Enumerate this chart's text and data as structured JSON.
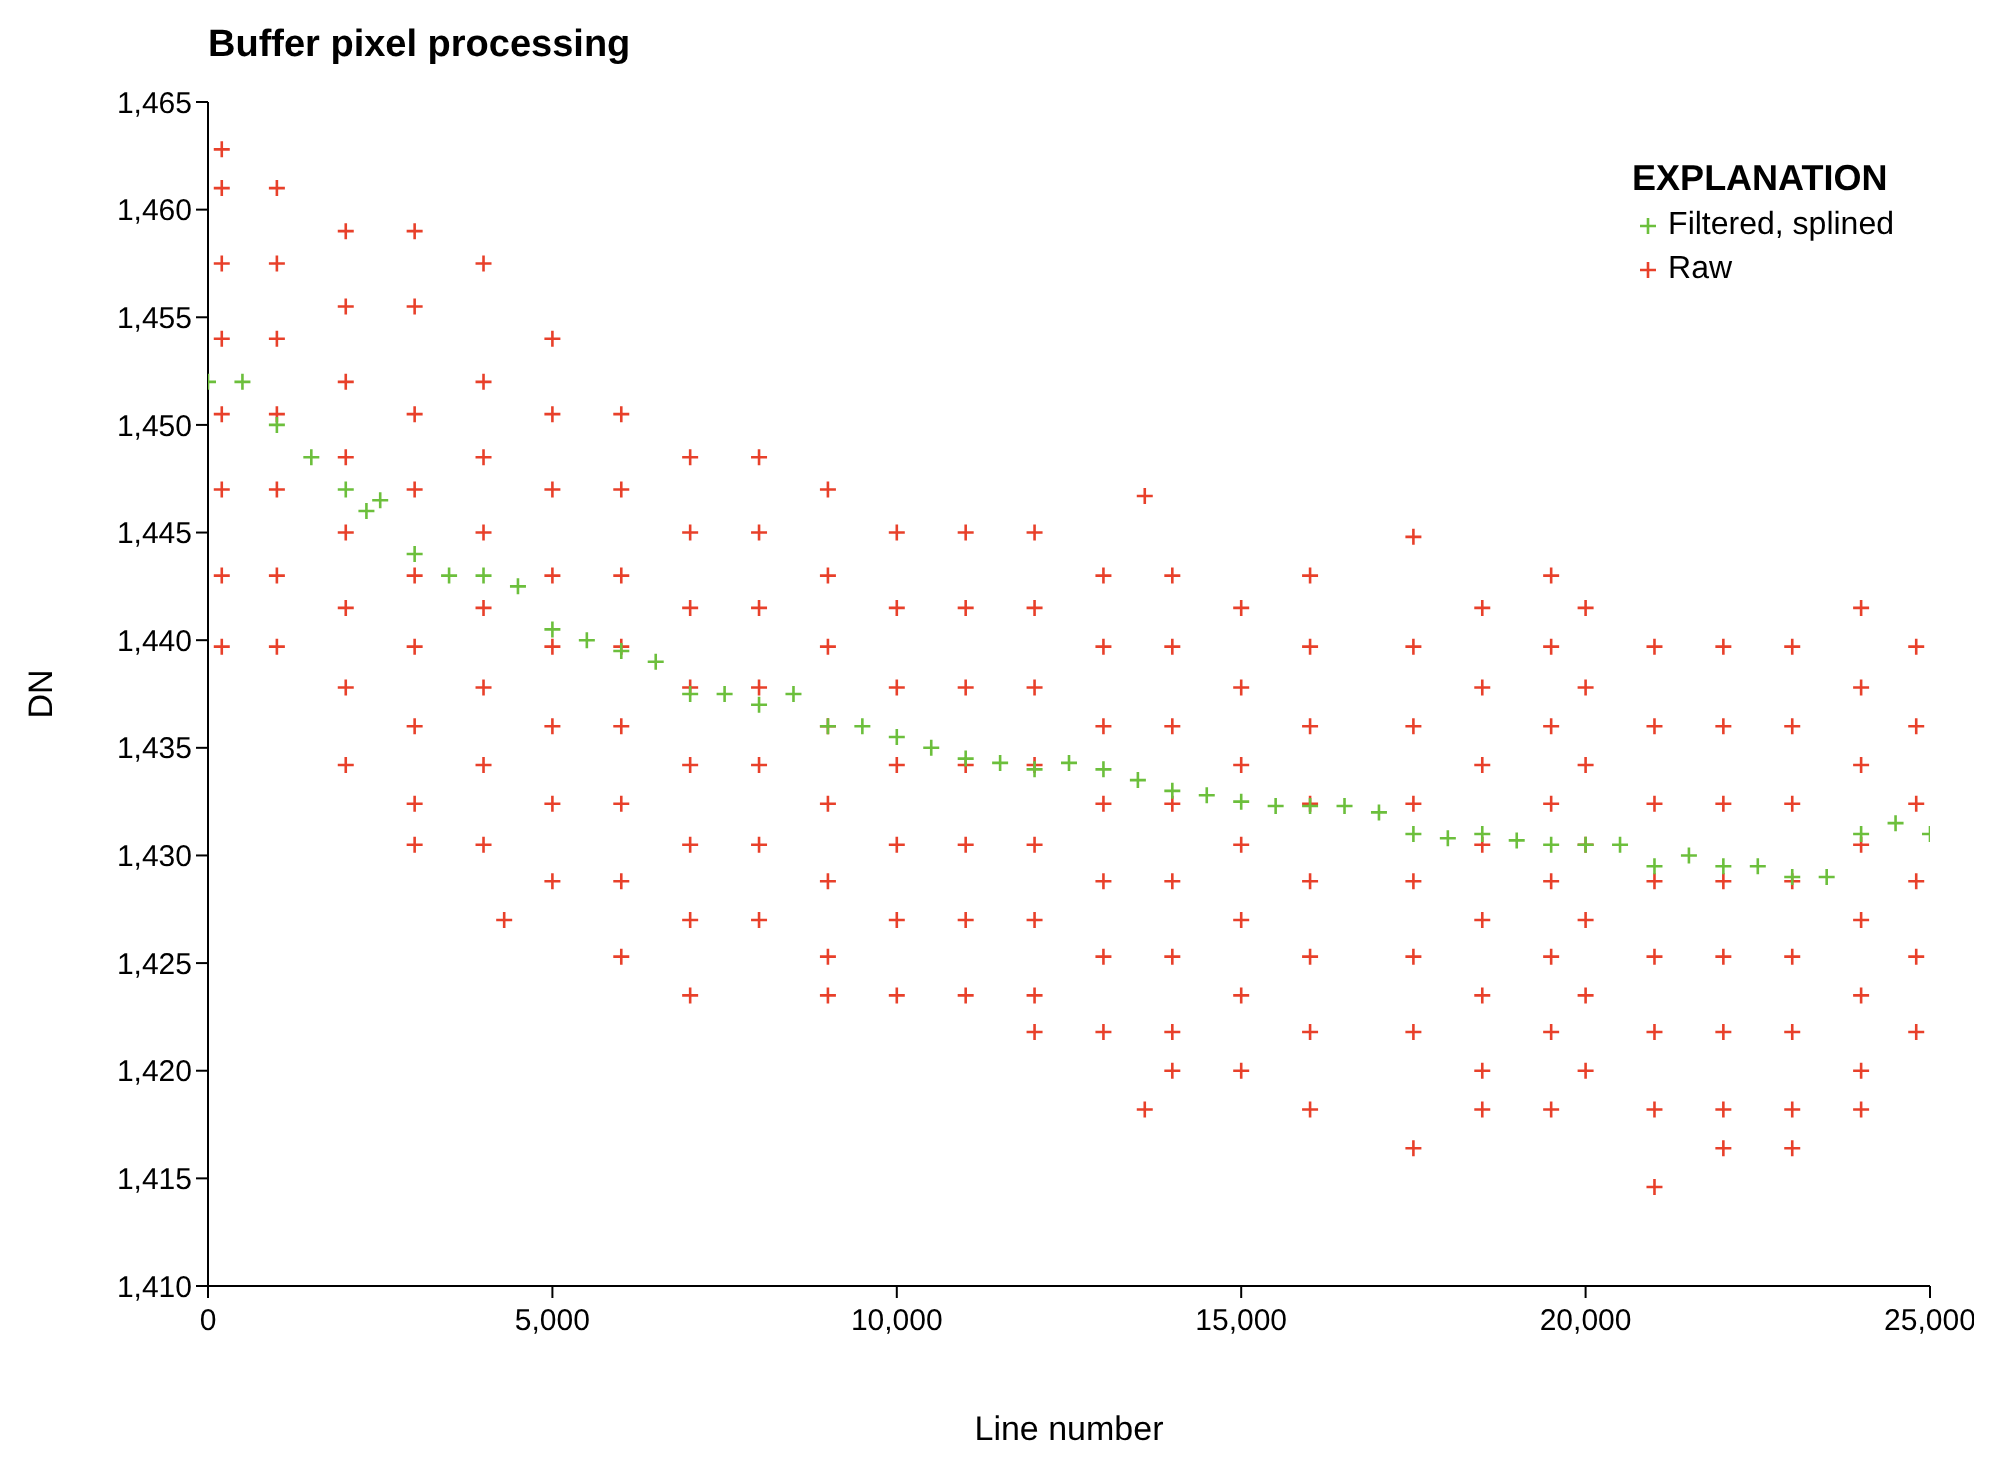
{
  "chart_data": {
    "type": "scatter",
    "title": "Buffer pixel processing",
    "xlabel": "Line number",
    "ylabel": "DN",
    "legend_title": "EXPLANATION",
    "legend": "top right",
    "grid": false,
    "xlim": [
      0,
      25000
    ],
    "xticks": [
      0,
      {
        "value": 5000,
        "label": "5,000"
      },
      {
        "value": 10000,
        "label": "10,000"
      },
      {
        "value": 15000,
        "label": "15,000"
      },
      {
        "value": 20000,
        "label": "20,000"
      },
      {
        "value": 25000,
        "label": "25,000"
      }
    ],
    "ylim": [
      1410,
      1465
    ],
    "yticks": [
      {
        "value": 1410,
        "label": "1,410"
      },
      {
        "value": 1415,
        "label": "1,415"
      },
      {
        "value": 1420,
        "label": "1,420"
      },
      {
        "value": 1425,
        "label": "1,425"
      },
      {
        "value": 1430,
        "label": "1,430"
      },
      {
        "value": 1435,
        "label": "1,435"
      },
      {
        "value": 1440,
        "label": "1,440"
      },
      {
        "value": 1445,
        "label": "1,445"
      },
      {
        "value": 1450,
        "label": "1,450"
      },
      {
        "value": 1455,
        "label": "1,455"
      },
      {
        "value": 1460,
        "label": "1,460"
      },
      {
        "value": 1465,
        "label": "1,465"
      }
    ],
    "series": [
      {
        "name": "Raw",
        "color": "#e8402a",
        "marker": "cross",
        "x": [
          200,
          200,
          200,
          200,
          200,
          200,
          200,
          200,
          1000,
          1000,
          1000,
          1000,
          1000,
          1000,
          1000,
          2000,
          2000,
          2000,
          2000,
          2000,
          2000,
          2000,
          2000,
          3000,
          3000,
          3000,
          3000,
          3000,
          3000,
          3000,
          3000,
          3000,
          4000,
          4000,
          4000,
          4000,
          4000,
          4000,
          4000,
          4000,
          4300,
          5000,
          5000,
          5000,
          5000,
          5000,
          5000,
          5000,
          5000,
          6000,
          6000,
          6000,
          6000,
          6000,
          6000,
          6000,
          6000,
          7000,
          7000,
          7000,
          7000,
          7000,
          7000,
          7000,
          7000,
          8000,
          8000,
          8000,
          8000,
          8000,
          8000,
          8000,
          9000,
          9000,
          9000,
          9000,
          9000,
          9000,
          9000,
          9000,
          10000,
          10000,
          10000,
          10000,
          10000,
          10000,
          10000,
          11000,
          11000,
          11000,
          11000,
          11000,
          11000,
          11000,
          12000,
          12000,
          12000,
          12000,
          12000,
          12000,
          12000,
          12000,
          13000,
          13000,
          13000,
          13000,
          13000,
          13000,
          13000,
          13600,
          13600,
          14000,
          14000,
          14000,
          14000,
          14000,
          14000,
          14000,
          14000,
          15000,
          15000,
          15000,
          15000,
          15000,
          15000,
          15000,
          16000,
          16000,
          16000,
          16000,
          16000,
          16000,
          16000,
          16000,
          17500,
          17500,
          17500,
          17500,
          17500,
          17500,
          17500,
          17500,
          18500,
          18500,
          18500,
          18500,
          18500,
          18500,
          18500,
          18500,
          19500,
          19500,
          19500,
          19500,
          19500,
          19500,
          19500,
          19500,
          20000,
          20000,
          20000,
          20000,
          20000,
          20000,
          20000,
          21000,
          21000,
          21000,
          21000,
          21000,
          21000,
          21000,
          21000,
          22000,
          22000,
          22000,
          22000,
          22000,
          22000,
          22000,
          22000,
          23000,
          23000,
          23000,
          23000,
          23000,
          23000,
          23000,
          23000,
          24000,
          24000,
          24000,
          24000,
          24000,
          24000,
          24000,
          24000,
          24800,
          24800,
          24800,
          24800,
          24800,
          24800
        ],
        "values": [
          1462.8,
          1461,
          1457.5,
          1454,
          1450.5,
          1447,
          1443,
          1439.7,
          1461,
          1457.5,
          1454,
          1450.5,
          1447,
          1443,
          1439.7,
          1459,
          1455.5,
          1452,
          1448.5,
          1445,
          1441.5,
          1437.8,
          1434.2,
          1459,
          1455.5,
          1450.5,
          1447,
          1443,
          1439.7,
          1436,
          1432.4,
          1430.5,
          1457.5,
          1452,
          1448.5,
          1445,
          1441.5,
          1437.8,
          1434.2,
          1430.5,
          1427,
          1454,
          1450.5,
          1447,
          1443,
          1439.7,
          1436,
          1432.4,
          1428.8,
          1450.5,
          1447,
          1443,
          1439.7,
          1436,
          1432.4,
          1428.8,
          1425.3,
          1448.5,
          1445,
          1441.5,
          1437.8,
          1434.2,
          1430.5,
          1427,
          1423.5,
          1448.5,
          1445,
          1441.5,
          1437.8,
          1434.2,
          1430.5,
          1427,
          1447,
          1443,
          1439.7,
          1436,
          1432.4,
          1428.8,
          1425.3,
          1423.5,
          1445,
          1441.5,
          1437.8,
          1434.2,
          1430.5,
          1427,
          1423.5,
          1445,
          1441.5,
          1437.8,
          1434.2,
          1430.5,
          1427,
          1423.5,
          1445,
          1441.5,
          1437.8,
          1434.2,
          1430.5,
          1427,
          1423.5,
          1421.8,
          1443,
          1439.7,
          1436,
          1432.4,
          1428.8,
          1425.3,
          1421.8,
          1446.7,
          1418.2,
          1443,
          1439.7,
          1436,
          1432.4,
          1428.8,
          1425.3,
          1421.8,
          1420,
          1441.5,
          1437.8,
          1434.2,
          1430.5,
          1427,
          1423.5,
          1420,
          1443,
          1439.7,
          1436,
          1432.4,
          1428.8,
          1425.3,
          1421.8,
          1418.2,
          1444.8,
          1439.7,
          1436,
          1432.4,
          1428.8,
          1425.3,
          1421.8,
          1416.4,
          1441.5,
          1437.8,
          1434.2,
          1430.5,
          1427,
          1423.5,
          1420,
          1418.2,
          1443,
          1439.7,
          1436,
          1432.4,
          1428.8,
          1425.3,
          1421.8,
          1418.2,
          1441.5,
          1437.8,
          1434.2,
          1430.5,
          1427,
          1423.5,
          1420,
          1439.7,
          1436,
          1432.4,
          1428.8,
          1425.3,
          1421.8,
          1418.2,
          1414.6,
          1439.7,
          1436,
          1432.4,
          1428.8,
          1425.3,
          1421.8,
          1418.2,
          1416.4,
          1439.7,
          1436,
          1432.4,
          1428.8,
          1425.3,
          1421.8,
          1418.2,
          1416.4,
          1441.5,
          1437.8,
          1434.2,
          1430.5,
          1427,
          1423.5,
          1420,
          1418.2,
          1439.7,
          1436,
          1432.4,
          1428.8,
          1425.3,
          1421.8
        ]
      },
      {
        "name": "Filtered, splined",
        "color": "#6cbf3c",
        "marker": "cross",
        "x": [
          0,
          500,
          1000,
          1500,
          2000,
          2300,
          2500,
          3000,
          3500,
          4000,
          4500,
          5000,
          5500,
          6000,
          6500,
          7000,
          7500,
          8000,
          8500,
          9000,
          9500,
          10000,
          10500,
          11000,
          11500,
          12000,
          12500,
          13000,
          13500,
          14000,
          14500,
          15000,
          15500,
          16000,
          16500,
          17000,
          17500,
          18000,
          18500,
          19000,
          19500,
          20000,
          20500,
          21000,
          21500,
          22000,
          22500,
          23000,
          23500,
          24000,
          24500,
          25000
        ],
        "values": [
          1452,
          1452,
          1450,
          1448.5,
          1447,
          1446,
          1446.5,
          1444,
          1443,
          1443,
          1442.5,
          1440.5,
          1440,
          1439.5,
          1439,
          1437.5,
          1437.5,
          1437,
          1437.5,
          1436,
          1436,
          1435.5,
          1435,
          1434.5,
          1434.3,
          1434,
          1434.3,
          1434,
          1433.5,
          1433,
          1432.8,
          1432.5,
          1432.3,
          1432.3,
          1432.3,
          1432,
          1431,
          1430.8,
          1431,
          1430.7,
          1430.5,
          1430.5,
          1430.5,
          1429.5,
          1430,
          1429.5,
          1429.5,
          1429,
          1429,
          1431,
          1431.5,
          1431
        ]
      }
    ]
  }
}
